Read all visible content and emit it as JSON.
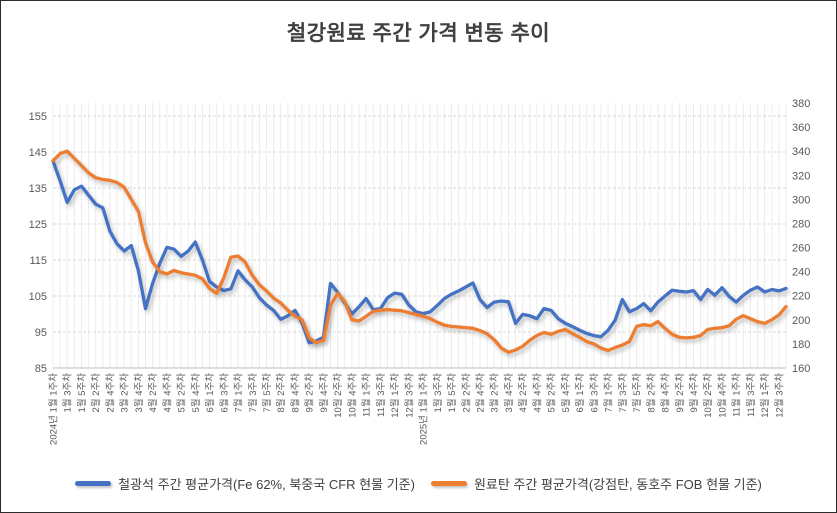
{
  "chart_data": {
    "type": "line",
    "title": "철강원료 주간 가격 변동 추이",
    "x_labels": [
      "2024년 1월 1주차",
      "1월 3주차",
      "1월 5주차",
      "2월 2주차",
      "2월 4주차",
      "3월 2주차",
      "3월 4주차",
      "4월 2주차",
      "4월 4주차",
      "5월 2주차",
      "5월 4주차",
      "6월 1주차",
      "6월 3주차",
      "7월 1주차",
      "7월 3주차",
      "7월 5주차",
      "8월 2주차",
      "8월 4주차",
      "9월 2주차",
      "9월 4주차",
      "10월 2주차",
      "10월 4주차",
      "11월 1주차",
      "11월 3주차",
      "12월 1주차",
      "12월 3주차",
      "2025년 1월 1주차",
      "1월 3주차",
      "1월 5주차",
      "2월 2주차",
      "2월 4주차",
      "3월 2주차",
      "3월 4주차",
      "4월 2주차",
      "4월 4주차",
      "5월 2주차",
      "5월 4주차",
      "6월 1주차",
      "6월 3주차",
      "7월 1주차",
      "7월 3주차",
      "7월 5주차",
      "8월 2주차",
      "8월 4주차",
      "9월 2주차",
      "9월 4주차",
      "10월 2주차",
      "10월 4주차",
      "11월 1주차",
      "11월 3주차",
      "12월 1주차",
      "12월 3주차"
    ],
    "label_every_n_points": 2,
    "y_axis_left": {
      "ticks": [
        155,
        145,
        135,
        125,
        115,
        105,
        95,
        85
      ],
      "min": 85,
      "max": 158.6
    },
    "y_axis_right": {
      "ticks": [
        380,
        360,
        340,
        320,
        300,
        280,
        260,
        240,
        220,
        200,
        180,
        160
      ],
      "min": 160,
      "max": 380
    },
    "grid": {
      "horizontal": "dashed",
      "vertical": "per-category",
      "legend_position": "bottom"
    },
    "series": [
      {
        "name": "철광석 주간 평균가격(Fe 62%, 북중국 CFR 현물 기준)",
        "axis": "left",
        "color": "#4472C4",
        "values": [
          142.5,
          137,
          131,
          134.5,
          135.5,
          133,
          130.5,
          129.5,
          123,
          119.5,
          117.5,
          119,
          112,
          101.5,
          108.5,
          114,
          118.5,
          118,
          116,
          117.5,
          120,
          115,
          109,
          107.5,
          106.5,
          107,
          112,
          109.5,
          107.5,
          104.5,
          102.5,
          101,
          98.5,
          99.5,
          101,
          97.5,
          92,
          92.5,
          93.5,
          108.5,
          106,
          103,
          100,
          102,
          104.3,
          101.2,
          101.5,
          104.5,
          105.8,
          105.5,
          102.5,
          100.6,
          100.1,
          100.6,
          102.4,
          104.3,
          105.5,
          106.4,
          107.5,
          108.6,
          104,
          101.8,
          103.3,
          103.6,
          103.4,
          97.4,
          99.9,
          99.5,
          98.7,
          101.5,
          101,
          98.7,
          97.4,
          96.5,
          95.5,
          94.6,
          94,
          93.7,
          95.5,
          98.3,
          104,
          100.6,
          101.5,
          102.9,
          100.9,
          103.3,
          105,
          106.6,
          106.3,
          106.1,
          106.5,
          104,
          106.8,
          105.2,
          107.3,
          104.9,
          103.3,
          105.2,
          106.6,
          107.5,
          106.1,
          106.8,
          106.4,
          107.1
        ]
      },
      {
        "name": "원료탄 주간 평균가격(강점탄, 동호주 FOB 현물 기준)",
        "axis": "right",
        "color": "#ED7D31",
        "values": [
          332,
          338,
          340,
          334,
          328,
          322,
          318,
          316.5,
          315.8,
          314,
          310,
          300,
          290,
          264,
          248,
          240,
          238,
          241,
          239,
          238,
          237,
          234,
          226,
          222,
          235,
          252,
          253,
          248,
          237,
          229,
          224,
          218,
          214,
          208,
          203,
          200,
          185,
          181,
          183,
          212,
          222,
          215,
          200,
          199,
          203,
          207,
          208,
          208.5,
          208,
          207.5,
          206,
          204.5,
          203,
          201,
          198,
          195.5,
          194.5,
          194,
          193.5,
          193,
          191,
          188.5,
          183.5,
          176.5,
          173,
          175,
          178,
          183,
          187,
          189.5,
          188,
          190.5,
          192,
          188.5,
          185.5,
          182,
          180,
          176.5,
          174.5,
          177,
          179,
          182,
          194.5,
          196,
          195,
          198.5,
          193,
          188,
          185.5,
          185,
          185.5,
          187,
          192,
          193,
          193.5,
          195,
          200.5,
          203.5,
          201,
          198.5,
          197,
          200,
          204,
          211
        ]
      }
    ]
  },
  "legend": {
    "iron_ore_label": "철광석 주간 평균가격(Fe 62%, 북중국 CFR 현물 기준)",
    "coking_coal_label": "원료탄 주간 평균가격(강점탄, 동호주 FOB 현물 기준)"
  }
}
